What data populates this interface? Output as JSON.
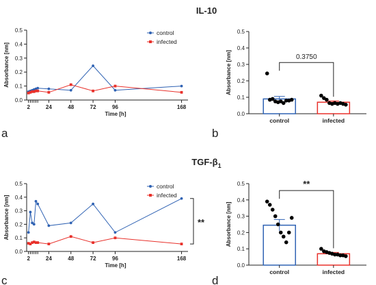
{
  "figure": {
    "title_top": "IL-10",
    "title_bottom_main": "TGF-β",
    "title_bottom_sub": "1"
  },
  "colors": {
    "control": "#2f62b3",
    "infected": "#e8302a",
    "axis": "#222222",
    "point": "#000000"
  },
  "chart_data": [
    {
      "panel": "a",
      "type": "line",
      "xlabel": "Time [h]",
      "ylabel": "Absorbance [nm]",
      "xlim": [
        0,
        175
      ],
      "ylim": [
        0,
        0.5
      ],
      "xticks": [
        2,
        24,
        48,
        72,
        96,
        168
      ],
      "xminor_ticks": [
        4,
        6,
        8,
        10,
        12
      ],
      "yticks": [
        0.0,
        0.1,
        0.2,
        0.3,
        0.4,
        0.5
      ],
      "legend": "top-right",
      "series": [
        {
          "name": "control",
          "marker": "circle",
          "x": [
            2,
            4,
            6,
            8,
            10,
            12,
            24,
            48,
            72,
            96,
            168
          ],
          "y": [
            0.06,
            0.065,
            0.07,
            0.075,
            0.08,
            0.085,
            0.08,
            0.07,
            0.245,
            0.07,
            0.1
          ]
        },
        {
          "name": "infected",
          "marker": "square",
          "x": [
            2,
            4,
            6,
            8,
            10,
            12,
            24,
            48,
            72,
            96,
            168
          ],
          "y": [
            0.05,
            0.055,
            0.06,
            0.06,
            0.065,
            0.065,
            0.055,
            0.11,
            0.065,
            0.1,
            0.055
          ]
        }
      ]
    },
    {
      "panel": "b",
      "type": "bar",
      "ylabel": "Absorbance [nm]",
      "ylim": [
        0,
        0.5
      ],
      "yticks": [
        0.0,
        0.1,
        0.2,
        0.3,
        0.4,
        0.5
      ],
      "categories": [
        "control",
        "infected"
      ],
      "values": [
        0.09,
        0.07
      ],
      "errors": [
        0.015,
        0.008
      ],
      "points": [
        [
          0.245,
          0.085,
          0.09,
          0.075,
          0.07,
          0.075,
          0.065,
          0.08,
          0.08,
          0.085
        ],
        [
          0.11,
          0.095,
          0.085,
          0.065,
          0.06,
          0.065,
          0.06,
          0.065,
          0.06,
          0.055
        ]
      ],
      "annotation": "0.3750"
    },
    {
      "panel": "c",
      "type": "line",
      "xlabel": "Time [h]",
      "ylabel": "Absorbance [nm]",
      "xlim": [
        0,
        175
      ],
      "ylim": [
        0,
        0.5
      ],
      "xticks": [
        2,
        24,
        48,
        72,
        96,
        168
      ],
      "xminor_ticks": [
        4,
        6,
        8,
        10,
        12
      ],
      "yticks": [
        0.0,
        0.1,
        0.2,
        0.3,
        0.4,
        0.5
      ],
      "legend": "top-right",
      "annotation": "**",
      "series": [
        {
          "name": "control",
          "marker": "circle",
          "x": [
            2,
            4,
            6,
            8,
            10,
            12,
            24,
            48,
            72,
            96,
            168
          ],
          "y": [
            0.14,
            0.29,
            0.21,
            0.2,
            0.37,
            0.35,
            0.19,
            0.21,
            0.35,
            0.14,
            0.39
          ]
        },
        {
          "name": "infected",
          "marker": "square",
          "x": [
            2,
            4,
            6,
            8,
            10,
            12,
            24,
            48,
            72,
            96,
            168
          ],
          "y": [
            0.06,
            0.055,
            0.065,
            0.07,
            0.065,
            0.065,
            0.055,
            0.11,
            0.065,
            0.1,
            0.055
          ]
        }
      ]
    },
    {
      "panel": "d",
      "type": "bar",
      "ylabel": "Absorbance [nm]",
      "ylim": [
        0,
        0.5
      ],
      "yticks": [
        0.0,
        0.1,
        0.2,
        0.3,
        0.4,
        0.5
      ],
      "categories": [
        "control",
        "infected"
      ],
      "values": [
        0.245,
        0.07
      ],
      "errors": [
        0.035,
        0.008
      ],
      "points": [
        [
          0.39,
          0.37,
          0.34,
          0.3,
          0.25,
          0.2,
          0.175,
          0.14,
          0.2,
          0.29
        ],
        [
          0.1,
          0.085,
          0.08,
          0.075,
          0.07,
          0.065,
          0.065,
          0.06,
          0.06,
          0.055
        ]
      ],
      "annotation": "**"
    }
  ]
}
